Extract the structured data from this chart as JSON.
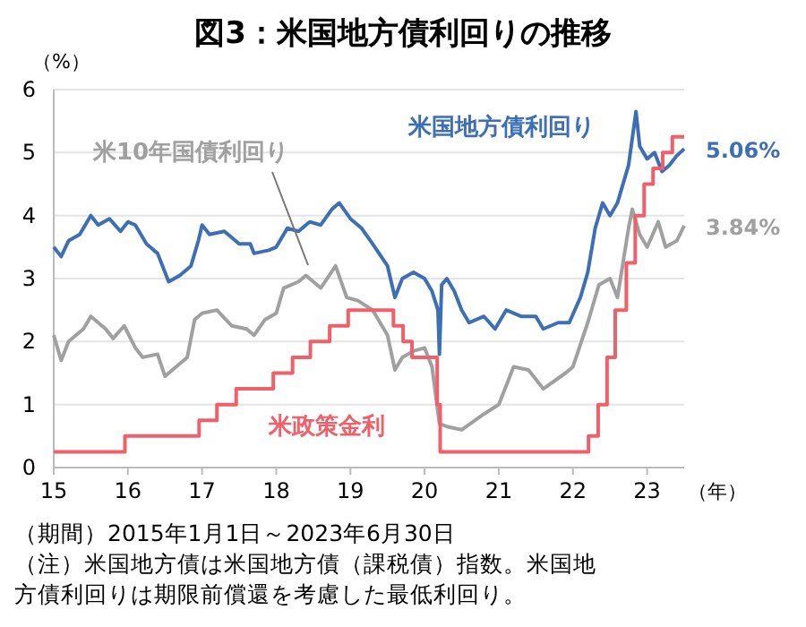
{
  "chart_data": {
    "type": "line",
    "title": "図3：米国地方債利回りの推移",
    "ylabel": "（%）",
    "xlabel": "（年）",
    "xlim": [
      2015,
      2023.5
    ],
    "xticks": [
      {
        "value": 2015,
        "label": "15"
      },
      {
        "value": 2016,
        "label": "16"
      },
      {
        "value": 2017,
        "label": "17"
      },
      {
        "value": 2018,
        "label": "18"
      },
      {
        "value": 2019,
        "label": "19"
      },
      {
        "value": 2020,
        "label": "20"
      },
      {
        "value": 2021,
        "label": "21"
      },
      {
        "value": 2022,
        "label": "22"
      },
      {
        "value": 2023,
        "label": "23"
      }
    ],
    "ylim": [
      0,
      6
    ],
    "yticks": [
      0,
      1,
      2,
      3,
      4,
      5,
      6
    ],
    "grid": "y",
    "series": [
      {
        "name": "米国地方債利回り",
        "color": "#3e6fb5",
        "x": [
          2015,
          2015.1,
          2015.2,
          2015.35,
          2015.5,
          2015.6,
          2015.75,
          2015.9,
          2016,
          2016.1,
          2016.25,
          2016.4,
          2016.5,
          2016.55,
          2016.7,
          2016.85,
          2016.95,
          2017,
          2017.1,
          2017.3,
          2017.5,
          2017.65,
          2017.7,
          2017.9,
          2018,
          2018.15,
          2018.3,
          2018.45,
          2018.6,
          2018.75,
          2018.85,
          2019,
          2019.15,
          2019.3,
          2019.5,
          2019.6,
          2019.7,
          2019.85,
          2020,
          2020.1,
          2020.18,
          2020.2,
          2020.23,
          2020.3,
          2020.4,
          2020.5,
          2020.6,
          2020.8,
          2020.95,
          2021.1,
          2021.3,
          2021.5,
          2021.6,
          2021.8,
          2021.95,
          2022.1,
          2022.2,
          2022.3,
          2022.4,
          2022.5,
          2022.6,
          2022.75,
          2022.85,
          2022.9,
          2023,
          2023.1,
          2023.2,
          2023.3,
          2023.4,
          2023.5
        ],
        "values": [
          3.5,
          3.35,
          3.6,
          3.7,
          4.0,
          3.85,
          3.95,
          3.75,
          3.9,
          3.85,
          3.55,
          3.4,
          3.1,
          2.95,
          3.05,
          3.2,
          3.6,
          3.85,
          3.7,
          3.75,
          3.55,
          3.55,
          3.4,
          3.45,
          3.5,
          3.8,
          3.75,
          3.9,
          3.85,
          4.1,
          4.2,
          3.95,
          3.8,
          3.55,
          3.2,
          2.7,
          3.0,
          3.1,
          3.0,
          2.8,
          2.5,
          1.8,
          2.9,
          3.0,
          2.8,
          2.5,
          2.3,
          2.4,
          2.2,
          2.5,
          2.4,
          2.4,
          2.2,
          2.3,
          2.3,
          2.7,
          3.1,
          3.8,
          4.2,
          4.0,
          4.2,
          4.8,
          5.65,
          5.1,
          4.9,
          5.0,
          4.7,
          4.8,
          4.95,
          5.06
        ]
      },
      {
        "name": "米10年国債利回り",
        "color": "#a0a0a0",
        "x": [
          2015,
          2015.1,
          2015.2,
          2015.4,
          2015.5,
          2015.7,
          2015.8,
          2015.95,
          2016.1,
          2016.2,
          2016.4,
          2016.5,
          2016.6,
          2016.8,
          2016.9,
          2017,
          2017.2,
          2017.4,
          2017.6,
          2017.7,
          2017.85,
          2018,
          2018.1,
          2018.3,
          2018.4,
          2018.6,
          2018.8,
          2018.95,
          2019.1,
          2019.3,
          2019.5,
          2019.6,
          2019.7,
          2019.85,
          2020,
          2020.1,
          2020.2,
          2020.3,
          2020.5,
          2020.8,
          2021,
          2021.2,
          2021.4,
          2021.6,
          2021.9,
          2022,
          2022.2,
          2022.35,
          2022.5,
          2022.6,
          2022.75,
          2022.8,
          2022.9,
          2023,
          2023.15,
          2023.25,
          2023.4,
          2023.5
        ],
        "values": [
          2.1,
          1.7,
          2.0,
          2.2,
          2.4,
          2.2,
          2.05,
          2.25,
          1.9,
          1.75,
          1.8,
          1.45,
          1.55,
          1.75,
          2.35,
          2.45,
          2.5,
          2.25,
          2.2,
          2.1,
          2.35,
          2.45,
          2.85,
          2.95,
          3.05,
          2.85,
          3.2,
          2.7,
          2.65,
          2.5,
          2.1,
          1.55,
          1.75,
          1.85,
          1.9,
          1.6,
          0.7,
          0.65,
          0.6,
          0.85,
          1.0,
          1.6,
          1.55,
          1.25,
          1.5,
          1.6,
          2.3,
          2.9,
          3.0,
          2.7,
          3.8,
          4.1,
          3.7,
          3.5,
          3.9,
          3.5,
          3.6,
          3.84
        ]
      },
      {
        "name": "米政策金利",
        "type": "step",
        "color": "#f0606a",
        "x": [
          2015,
          2015.96,
          2016.96,
          2017.2,
          2017.46,
          2017.96,
          2018.22,
          2018.46,
          2018.72,
          2018.97,
          2019.58,
          2019.71,
          2019.83,
          2020.17,
          2020.21,
          2022.21,
          2022.34,
          2022.46,
          2022.57,
          2022.72,
          2022.84,
          2022.96,
          2023.08,
          2023.21,
          2023.34,
          2023.5
        ],
        "values": [
          0.25,
          0.5,
          0.75,
          1.0,
          1.25,
          1.5,
          1.75,
          2.0,
          2.25,
          2.5,
          2.25,
          2.0,
          1.75,
          1.0,
          0.25,
          0.5,
          1.0,
          1.75,
          2.5,
          3.25,
          4.0,
          4.5,
          4.75,
          5.0,
          5.25,
          5.25
        ]
      }
    ],
    "annotations": [
      {
        "text": "5.06%",
        "x": 2023.5,
        "y": 5.06
      },
      {
        "text": "3.84%",
        "x": 2023.5,
        "y": 3.84
      },
      "（期間）2015年1月1日～2023年6月30日",
      "（注）米国地方債は米国地方債（課税債）指数。米国地方債利回りは期限前償還を考慮した最低利回り。"
    ]
  }
}
